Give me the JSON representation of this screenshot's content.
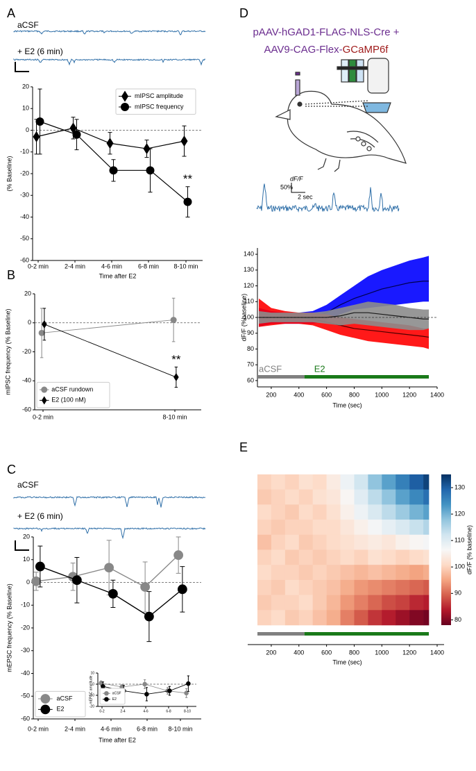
{
  "chart_data": [
    {
      "type": "line",
      "label": "A",
      "trace_labels": [
        "aCSF",
        "+ E2 (6 min)"
      ],
      "xlabel": "Time after E2",
      "ylabel": "(% Baseline)",
      "categories": [
        "0-2 min",
        "2-4 min",
        "4-6 min",
        "6-8 min",
        "8-10 min"
      ],
      "series": [
        {
          "name": "mIPSC amplitude",
          "color": "#000000",
          "marker": "diamond",
          "values": [
            -3,
            1,
            -6,
            -8.5,
            -5
          ],
          "errors": [
            8,
            5,
            5,
            4,
            7
          ]
        },
        {
          "name": "mIPSC frequency",
          "color": "#000000",
          "marker": "circle",
          "values": [
            4,
            -2,
            -18.5,
            -18.5,
            -33
          ],
          "errors": [
            15,
            7,
            5,
            10,
            7
          ]
        }
      ],
      "ylim": [
        -60,
        20
      ],
      "yticks": [
        -60,
        -50,
        -40,
        -30,
        -20,
        -10,
        0,
        10,
        20
      ],
      "hline": 0,
      "annotation": "**",
      "legend": "upper right"
    },
    {
      "type": "line",
      "label": "B",
      "ylabel": "mIPSC frequency (% Baseline)",
      "categories": [
        "0-2 min",
        "8-10 min"
      ],
      "series": [
        {
          "name": "aCSF rundown",
          "color": "#888888",
          "marker": "circle",
          "values": [
            -7,
            2
          ],
          "errors": [
            17,
            15
          ]
        },
        {
          "name": "E2 (100 nM)",
          "color": "#000000",
          "marker": "diamond",
          "values": [
            -1,
            -37.5
          ],
          "errors": [
            11,
            7
          ]
        }
      ],
      "ylim": [
        -60,
        20
      ],
      "yticks": [
        -60,
        -40,
        -20,
        0,
        20
      ],
      "hline": 0,
      "annotation": "**",
      "legend": "lower left"
    },
    {
      "type": "line",
      "label": "C",
      "trace_labels": [
        "aCSF",
        "+ E2 (6 min)"
      ],
      "xlabel": "Time after E2",
      "ylabel": "mEPSC frequency (% Baseline)",
      "categories": [
        "0-2 min",
        "2-4 min",
        "4-6 min",
        "6-8 min",
        "8-10 min"
      ],
      "series": [
        {
          "name": "aCSF",
          "color": "#888888",
          "marker": "circle",
          "values": [
            0.5,
            2.5,
            6.5,
            -2,
            12
          ],
          "errors": [
            4,
            6,
            12,
            11,
            8
          ]
        },
        {
          "name": "E2",
          "color": "#000000",
          "marker": "circle",
          "values": [
            7,
            1,
            -5,
            -15,
            -3
          ],
          "errors": [
            9,
            10,
            6,
            11,
            10
          ]
        }
      ],
      "ylim": [
        -60,
        20
      ],
      "yticks": [
        -60,
        -50,
        -40,
        -30,
        -20,
        -10,
        0,
        10,
        20
      ],
      "hline": 0,
      "legend": "lower left"
    },
    {
      "type": "line",
      "ylabel": "mEPSC amplitude",
      "categories": [
        "0-2",
        "2-4",
        "4-6",
        "6-8",
        "8-10"
      ],
      "series": [
        {
          "name": "aCSF",
          "color": "#888888",
          "marker": "circle",
          "values": [
            1,
            -2.5,
            0,
            -6,
            -8
          ],
          "errors": [
            2,
            2,
            4,
            3,
            4
          ]
        },
        {
          "name": "E2",
          "color": "#000000",
          "marker": "circle",
          "values": [
            -2,
            -6,
            -9,
            -6,
            0.5
          ],
          "errors": [
            4,
            5,
            6,
            4,
            7
          ]
        }
      ],
      "ylim": [
        -20,
        10
      ],
      "yticks": [
        -20,
        -10,
        0,
        10
      ],
      "hline": 0,
      "legend": "lower left"
    },
    {
      "type": "band",
      "label": "D",
      "title_line1": "pAAV-hGAD1-FLAG-NLS-Cre +",
      "title_line2": "AAV9-CAG-Flex-",
      "title_line2_red": "GCaMP6f",
      "title_colors": [
        "#6b2d8f",
        "#a01c1c"
      ],
      "scale_labels": [
        "dF/F",
        "50%",
        "2 sec"
      ],
      "xlabel": "Time (sec)",
      "ylabel": "dF/F (%baseline)",
      "x": [
        110,
        200,
        300,
        400,
        500,
        600,
        700,
        800,
        900,
        1000,
        1100,
        1200,
        1300,
        1340
      ],
      "series": [
        {
          "color": "#0000ff",
          "line_color": "#00004d",
          "values": [
            100,
            100,
            99.5,
            99.5,
            100,
            103,
            108,
            112,
            115,
            118,
            120,
            122,
            123,
            123
          ],
          "lower": [
            94,
            96,
            96,
            96,
            96,
            98,
            102,
            105,
            106,
            107,
            108,
            109,
            110,
            110
          ],
          "upper": [
            106,
            104,
            103,
            103,
            104,
            108,
            114,
            120,
            126,
            130,
            133,
            136,
            138,
            139
          ]
        },
        {
          "color": "#ff0000",
          "line_color": "#4d0000",
          "values": [
            100,
            100,
            100,
            100,
            99,
            97,
            95,
            93,
            92,
            91,
            90,
            89,
            88,
            87.5
          ],
          "lower": [
            94,
            95,
            96,
            96,
            95,
            92,
            89,
            87,
            85,
            84,
            83,
            82,
            81,
            80
          ],
          "upper": [
            112,
            106,
            104,
            103,
            103,
            102,
            100,
            99,
            98,
            97,
            96,
            95,
            93,
            93
          ]
        },
        {
          "color": "#8c8c8c",
          "line_color": "#1a1a1a",
          "values": [
            100,
            100,
            100,
            100,
            100,
            100,
            101,
            103,
            103,
            102,
            101,
            100,
            99,
            99
          ],
          "lower": [
            96,
            97,
            97,
            97,
            97,
            96,
            95,
            96,
            95,
            94,
            93,
            92,
            92,
            93
          ],
          "upper": [
            104,
            103,
            103,
            103,
            103,
            104,
            106,
            108,
            110,
            109,
            108,
            106,
            105,
            105
          ]
        }
      ],
      "xlim": [
        100,
        1400
      ],
      "xticks": [
        200,
        400,
        600,
        800,
        1000,
        1200,
        1400
      ],
      "ylim": [
        56,
        144
      ],
      "yticks": [
        60,
        70,
        80,
        90,
        100,
        110,
        120,
        130,
        140
      ],
      "hline": 100,
      "periods": [
        {
          "label": "aCSF",
          "start": 100,
          "end": 440,
          "color": "#808080"
        },
        {
          "label": "E2",
          "start": 440,
          "end": 1340,
          "color": "#1a7a1a"
        }
      ]
    },
    {
      "type": "heatmap",
      "label": "E",
      "xlabel": "Time (sec)",
      "colorbar_label": "dF/F (% baseline)",
      "x_edges": [
        100,
        200,
        300,
        400,
        500,
        600,
        700,
        800,
        900,
        1000,
        1100,
        1200,
        1300,
        1340
      ],
      "values": [
        [
          100,
          101,
          100,
          102,
          101,
          104,
          108,
          112,
          118,
          122,
          126,
          130,
          133
        ],
        [
          99,
          100,
          101,
          100,
          102,
          103,
          106,
          110,
          114,
          118,
          122,
          125,
          128
        ],
        [
          101,
          100,
          99,
          101,
          100,
          102,
          105,
          108,
          111,
          114,
          117,
          120,
          122
        ],
        [
          100,
          99,
          100,
          100,
          101,
          101,
          103,
          105,
          107,
          109,
          111,
          113,
          115
        ],
        [
          98,
          100,
          101,
          99,
          100,
          101,
          102,
          103,
          104,
          103,
          105,
          106,
          107
        ],
        [
          100,
          101,
          99,
          100,
          99,
          100,
          101,
          100,
          102,
          101,
          100,
          101,
          102
        ],
        [
          101,
          100,
          100,
          99,
          100,
          99,
          98,
          97,
          98,
          97,
          96,
          95,
          96
        ],
        [
          100,
          99,
          101,
          100,
          99,
          98,
          96,
          94,
          93,
          92,
          91,
          90,
          89
        ],
        [
          99,
          100,
          100,
          101,
          99,
          97,
          94,
          92,
          90,
          88,
          87,
          85,
          84
        ],
        [
          100,
          101,
          99,
          100,
          98,
          96,
          92,
          89,
          86,
          84,
          82,
          80,
          79
        ]
      ],
      "clim": [
        78,
        135
      ],
      "cticks": [
        80,
        90,
        100,
        110,
        120,
        130
      ],
      "colorscale": [
        "#67001f",
        "#b2182b",
        "#d6604d",
        "#f4a582",
        "#fddbc7",
        "#f7f7f7",
        "#d1e5f0",
        "#92c5de",
        "#4393c3",
        "#2166ac",
        "#053061"
      ],
      "xlim": [
        100,
        1400
      ],
      "xticks": [
        200,
        400,
        600,
        800,
        1000,
        1200,
        1400
      ],
      "periods": [
        {
          "start": 100,
          "end": 440,
          "color": "#808080"
        },
        {
          "start": 440,
          "end": 1340,
          "color": "#1a7a1a"
        }
      ]
    }
  ]
}
